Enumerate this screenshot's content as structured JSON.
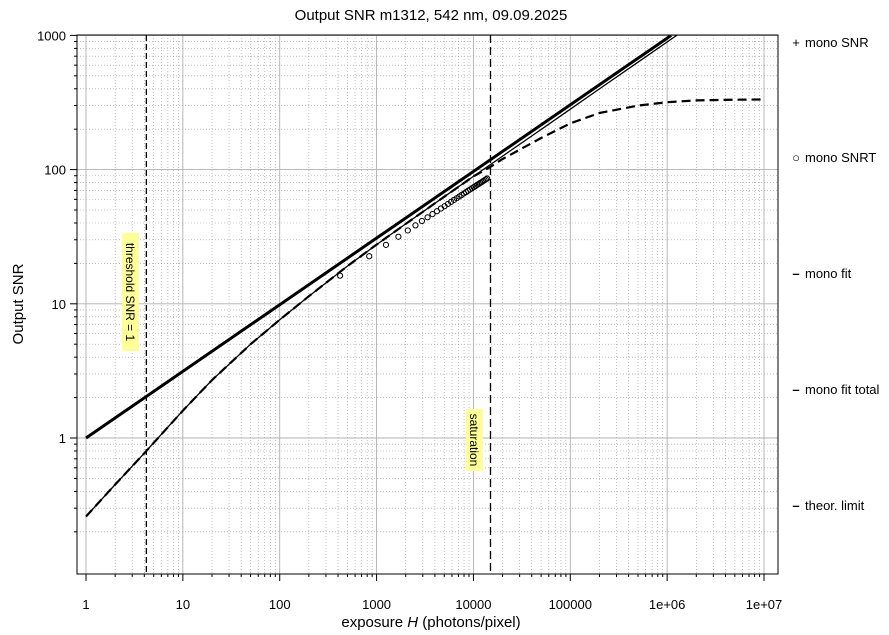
{
  "chart_data": {
    "type": "line",
    "title": "Output SNR m1312,  542 nm, 09.09.2025",
    "xlabel_prefix": "exposure ",
    "xlabel_var": "H",
    "xlabel_suffix": " (photons/pixel)",
    "ylabel": "Output SNR",
    "x_scale": "log",
    "y_scale": "log",
    "xlim": [
      1,
      10000000
    ],
    "ylim": [
      0.2,
      1000
    ],
    "grid": true,
    "x_ticks": [
      {
        "v": 1,
        "label": "1"
      },
      {
        "v": 10,
        "label": "10"
      },
      {
        "v": 100,
        "label": "100"
      },
      {
        "v": 1000,
        "label": "1000"
      },
      {
        "v": 10000,
        "label": "10000"
      },
      {
        "v": 100000,
        "label": "100000"
      },
      {
        "v": 1000000,
        "label": "1e+06"
      },
      {
        "v": 10000000,
        "label": "1e+07"
      }
    ],
    "y_ticks": [
      {
        "v": 1,
        "label": "1"
      },
      {
        "v": 10,
        "label": "10"
      },
      {
        "v": 100,
        "label": "100"
      },
      {
        "v": 1000,
        "label": "1000"
      }
    ],
    "legend_placement": "right",
    "legend": [
      {
        "symbol": "+",
        "label": "mono SNR"
      },
      {
        "symbol": "○",
        "label": "mono SNRT"
      },
      {
        "symbol": "–",
        "label": "mono fit"
      },
      {
        "symbol": "–",
        "label": "mono fit total"
      },
      {
        "symbol": "–",
        "label": "theor. limit"
      }
    ],
    "annotations": {
      "threshold": {
        "label": "threshold SNR = 1",
        "x": 4.2
      },
      "saturation": {
        "label": "saturation",
        "x": 15000
      }
    },
    "series": [
      {
        "name": "mono SNRT",
        "style": "markers-circle",
        "x": [
          420,
          840,
          1250,
          1680,
          2100,
          2520,
          2940,
          3360,
          3780,
          4200,
          4620,
          5040,
          5460,
          5880,
          6300,
          6720,
          7140,
          7560,
          7980,
          8400,
          8820,
          9240,
          9660,
          10080,
          10500,
          10920,
          11340,
          11760,
          12180,
          12600,
          13020,
          13440,
          13860
        ],
        "y": [
          16.2,
          22.6,
          27.5,
          31.6,
          35.2,
          38.4,
          41.4,
          44.1,
          46.6,
          49.0,
          51.3,
          53.4,
          55.5,
          57.5,
          59.4,
          61.2,
          63.0,
          64.7,
          66.4,
          68.0,
          69.6,
          71.1,
          72.6,
          74.0,
          75.4,
          76.8,
          78.2,
          79.5,
          80.8,
          82.1,
          83.4,
          84.6,
          85.8
        ]
      },
      {
        "name": "mono fit",
        "style": "thin-solid",
        "x": [
          1,
          2,
          4,
          10,
          20,
          50,
          100,
          200,
          500,
          1000,
          2000,
          5000,
          10000,
          20000,
          50000,
          100000,
          200000,
          500000,
          1000000,
          1600000
        ],
        "y": [
          0.26,
          0.45,
          0.77,
          1.6,
          2.7,
          5.0,
          7.6,
          11.4,
          19.1,
          27.6,
          39.4,
          62.8,
          89.0,
          126,
          199,
          282,
          399,
          631,
          893,
          1130
        ]
      },
      {
        "name": "mono fit total",
        "style": "dashed",
        "x": [
          1,
          2,
          4,
          10,
          20,
          50,
          100,
          200,
          500,
          1000,
          2000,
          5000,
          10000,
          15000,
          20000,
          50000,
          100000,
          200000,
          500000,
          1000000,
          2000000,
          5000000,
          10000000
        ],
        "y": [
          0.26,
          0.45,
          0.77,
          1.6,
          2.7,
          5.0,
          7.6,
          11.4,
          19.1,
          27.6,
          39.4,
          62.8,
          89.0,
          105,
          120,
          172,
          221,
          264,
          300,
          318,
          328,
          332,
          333
        ]
      },
      {
        "name": "theor. limit",
        "style": "thick-solid",
        "x": [
          1,
          1100000
        ],
        "y": [
          1,
          1000
        ]
      }
    ]
  }
}
